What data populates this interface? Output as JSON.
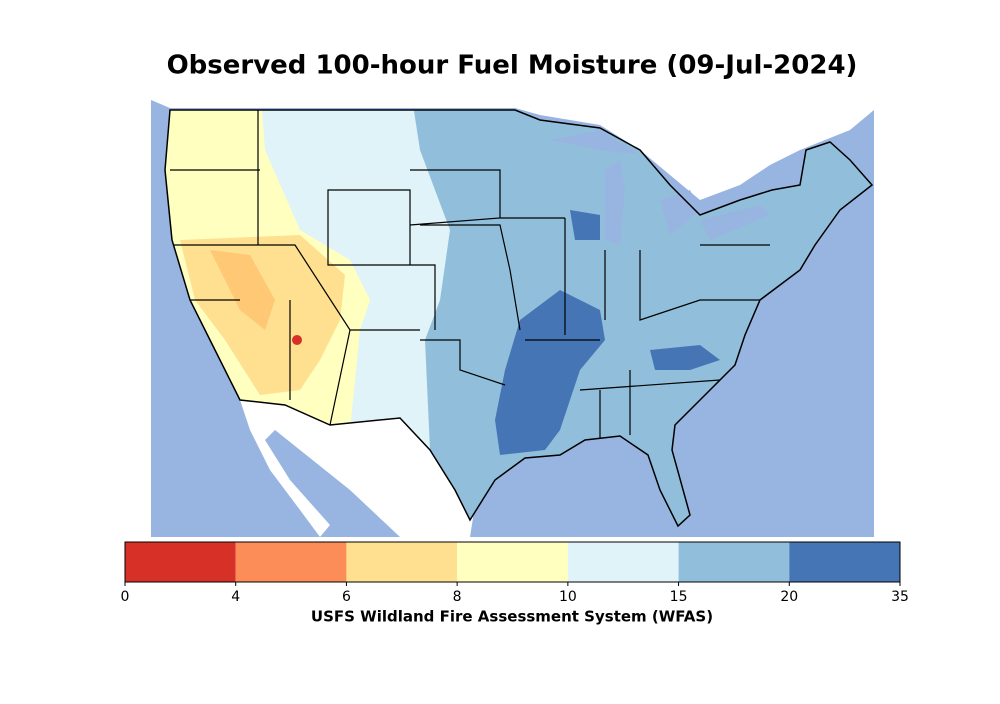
{
  "title": "Observed 100-hour Fuel Moisture (09-Jul-2024)",
  "colorbar": {
    "bounds": [
      0,
      4,
      6,
      8,
      10,
      15,
      20,
      35
    ],
    "colors": [
      "#d73027",
      "#fc8d59",
      "#fee090",
      "#ffffbf",
      "#e0f3f8",
      "#91bfdb",
      "#4575b4"
    ],
    "label": "USFS Wildland Fire Assessment System (WFAS)"
  }
}
